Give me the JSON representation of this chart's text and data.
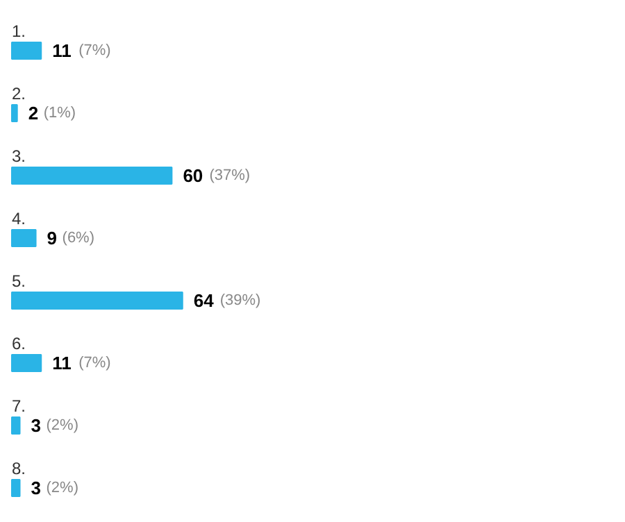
{
  "chart_data": {
    "type": "bar",
    "orientation": "horizontal",
    "color": "#2ab4e6",
    "categories": [
      "1.",
      "2.",
      "3.",
      "4.",
      "5.",
      "6.",
      "7.",
      "8."
    ],
    "values": [
      11,
      2,
      60,
      9,
      64,
      11,
      3,
      3
    ],
    "data_labels": true,
    "annotations": [
      {
        "text": "(7%)",
        "x": 11,
        "y": "1."
      },
      {
        "text": "(1%)",
        "x": 2,
        "y": "2."
      },
      {
        "text": "(37%)",
        "x": 60,
        "y": "3."
      },
      {
        "text": "(6%)",
        "x": 9,
        "y": "4."
      },
      {
        "text": "(39%)",
        "x": 64,
        "y": "5."
      },
      {
        "text": "(7%)",
        "x": 11,
        "y": "6."
      },
      {
        "text": "(2%)",
        "x": 3,
        "y": "7."
      },
      {
        "text": "(2%)",
        "x": 3,
        "y": "8."
      }
    ]
  }
}
